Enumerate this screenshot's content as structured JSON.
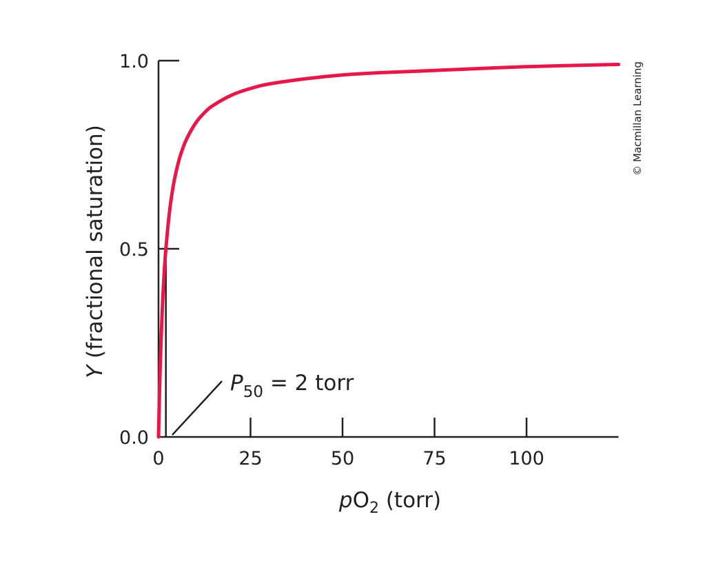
{
  "chart_data": {
    "type": "line",
    "title": "",
    "xlabel": {
      "italic": "p",
      "main": "O",
      "sub": "2",
      "rest": " (torr)"
    },
    "ylabel": {
      "italic": "Y",
      "rest": " (fractional saturation)"
    },
    "xlim": [
      0,
      125
    ],
    "ylim": [
      0,
      1.0
    ],
    "x_ticks": [
      0,
      25,
      50,
      75,
      100
    ],
    "x_tick_labels": [
      "0",
      "25",
      "50",
      "75",
      "100"
    ],
    "y_ticks": [
      0.0,
      0.5,
      1.0
    ],
    "y_tick_labels": [
      "0.0",
      "0.5",
      "1.0"
    ],
    "grid": false,
    "series": [
      {
        "color": "#e8174a",
        "x": [
          0,
          0.25,
          0.5,
          1,
          1.5,
          2,
          3,
          4,
          5,
          6,
          7.5,
          10,
          12.5,
          15,
          20,
          25,
          30,
          40,
          50,
          60,
          75,
          100,
          125
        ],
        "y": [
          0,
          0.111,
          0.2,
          0.333,
          0.429,
          0.5,
          0.6,
          0.667,
          0.714,
          0.75,
          0.789,
          0.833,
          0.862,
          0.882,
          0.909,
          0.926,
          0.938,
          0.952,
          0.962,
          0.968,
          0.974,
          0.984,
          0.99
        ]
      }
    ],
    "annotations": [
      {
        "italic": "P",
        "sub": "50",
        "rest": " = 2 torr",
        "x": 2,
        "y": 0.5
      }
    ],
    "credit": "© Macmillan Learning"
  }
}
